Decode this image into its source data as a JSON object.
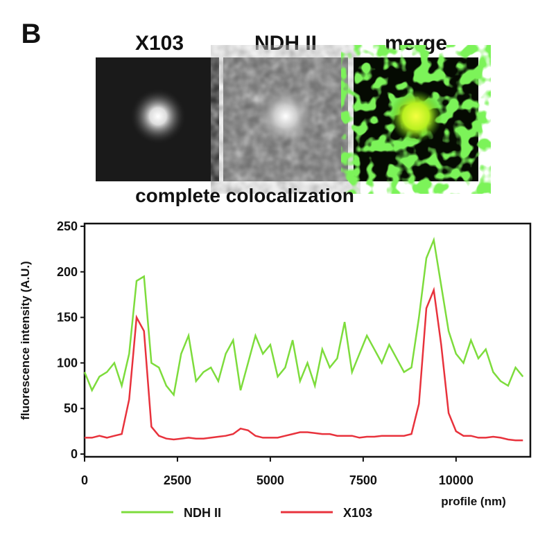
{
  "panel_label": "B",
  "images": [
    {
      "label": "X103"
    },
    {
      "label": "NDH II"
    },
    {
      "label": "merge"
    }
  ],
  "caption": "complete colocalization",
  "chart_data": {
    "type": "line",
    "x_label": "profile (nm)",
    "y_label": "fluorescence intensity (A.U.)",
    "x": [
      0,
      200,
      400,
      600,
      800,
      1000,
      1200,
      1400,
      1600,
      1800,
      2000,
      2200,
      2400,
      2600,
      2800,
      3000,
      3200,
      3400,
      3600,
      3800,
      4000,
      4200,
      4400,
      4600,
      4800,
      5000,
      5200,
      5400,
      5600,
      5800,
      6000,
      6200,
      6400,
      6600,
      6800,
      7000,
      7200,
      7400,
      7600,
      7800,
      8000,
      8200,
      8400,
      8600,
      8800,
      9000,
      9200,
      9400,
      9600,
      9800,
      10000,
      10200,
      10400,
      10600,
      10800,
      11000,
      11200,
      11400,
      11600,
      11800
    ],
    "series": [
      {
        "name": "NDH II",
        "color": "#7ddc3c",
        "values": [
          90,
          70,
          85,
          90,
          100,
          75,
          110,
          190,
          195,
          100,
          95,
          75,
          65,
          110,
          130,
          80,
          90,
          95,
          80,
          110,
          125,
          70,
          100,
          130,
          110,
          120,
          85,
          95,
          125,
          80,
          100,
          75,
          115,
          95,
          105,
          145,
          90,
          110,
          130,
          115,
          100,
          120,
          105,
          90,
          95,
          150,
          215,
          235,
          185,
          135,
          110,
          100,
          125,
          105,
          115,
          90,
          80,
          75,
          95,
          85
        ]
      },
      {
        "name": "X103",
        "color": "#e8323c",
        "values": [
          18,
          18,
          20,
          18,
          20,
          22,
          60,
          150,
          135,
          30,
          20,
          17,
          16,
          17,
          18,
          17,
          17,
          18,
          19,
          20,
          22,
          28,
          26,
          20,
          18,
          18,
          18,
          20,
          22,
          24,
          24,
          23,
          22,
          22,
          20,
          20,
          20,
          18,
          19,
          19,
          20,
          20,
          20,
          20,
          22,
          55,
          160,
          180,
          120,
          45,
          25,
          20,
          20,
          18,
          18,
          19,
          18,
          16,
          15,
          15
        ]
      }
    ],
    "xlim": [
      0,
      12000
    ],
    "ylim": [
      -3,
      253
    ],
    "xticks": [
      0,
      2500,
      5000,
      7500,
      10000
    ],
    "yticks": [
      0,
      50,
      100,
      150,
      200,
      250
    ],
    "legend": "bottom"
  }
}
